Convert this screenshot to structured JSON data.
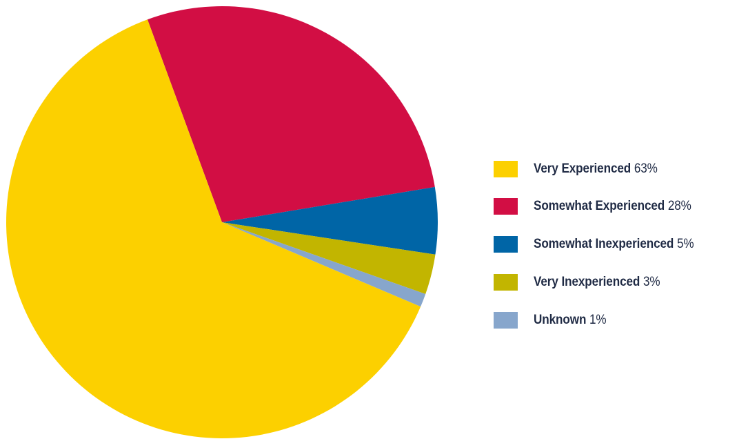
{
  "chart_data": {
    "type": "pie",
    "title": "",
    "slices": [
      {
        "label": "Very Experienced",
        "value": 63,
        "display": "63%",
        "color": "#FCD000"
      },
      {
        "label": "Somewhat Experienced",
        "value": 28,
        "display": "28%",
        "color": "#D20E44"
      },
      {
        "label": "Somewhat Inexperienced",
        "value": 5,
        "display": "5%",
        "color": "#0065A6"
      },
      {
        "label": "Very Inexperienced",
        "value": 3,
        "display": "3%",
        "color": "#C2B500"
      },
      {
        "label": "Unknown",
        "value": 1,
        "display": "1%",
        "color": "#87A6CC"
      }
    ],
    "legend_position": "right",
    "start_slice_order": [
      "Somewhat Experienced",
      "Somewhat Inexperienced",
      "Very Inexperienced",
      "Unknown",
      "Very Experienced"
    ]
  }
}
